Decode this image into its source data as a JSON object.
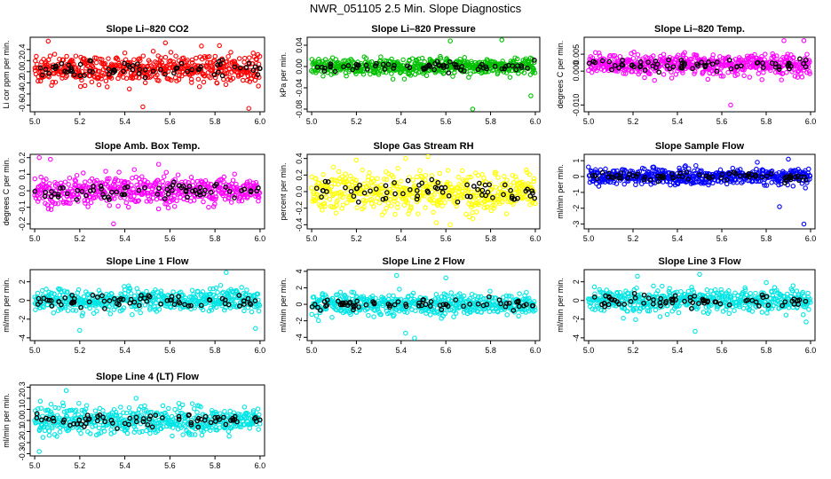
{
  "figure_title": "NWR_051105  2.5 Min. Slope Diagnostics",
  "chart_data": [
    {
      "type": "scatter",
      "title": "Slope Li–820 CO2",
      "ylabel": "Li cor ppm per min.",
      "color": "#ff0000",
      "xlim": [
        4.98,
        6.02
      ],
      "ylim": [
        -0.72,
        0.62
      ],
      "x_ticks": [
        "5.0",
        "5.2",
        "5.4",
        "5.6",
        "5.8",
        "6.0"
      ],
      "y_ticks": [
        "-0.6",
        "-0.4",
        "-0.2",
        "0.0",
        "0.2",
        "0.4"
      ],
      "y_tick_values": [
        -0.6,
        -0.4,
        -0.2,
        0.0,
        0.2,
        0.4
      ],
      "center": 0.05,
      "spread": 0.17,
      "outliers": [
        [
          5.06,
          0.55
        ],
        [
          5.48,
          -0.63
        ],
        [
          5.58,
          0.52
        ],
        [
          5.95,
          -0.66
        ],
        [
          5.82,
          0.47
        ]
      ]
    },
    {
      "type": "scatter",
      "title": "Slope Li–820 Pressure",
      "ylabel": "kPa per min.",
      "color": "#00c000",
      "xlim": [
        4.98,
        6.02
      ],
      "ylim": [
        -0.085,
        0.055
      ],
      "x_ticks": [
        "5.0",
        "5.2",
        "5.4",
        "5.6",
        "5.8",
        "6.0"
      ],
      "y_ticks": [
        "-0.08",
        "-0.04",
        "0.00",
        "0.04"
      ],
      "y_tick_values": [
        -0.08,
        -0.04,
        0.0,
        0.04
      ],
      "center": 0.0,
      "spread": 0.011,
      "outliers": [
        [
          5.72,
          -0.08
        ],
        [
          5.85,
          0.05
        ],
        [
          5.62,
          0.048
        ],
        [
          5.98,
          -0.055
        ]
      ]
    },
    {
      "type": "scatter",
      "title": "Slope Li–820 Temp.",
      "ylabel": "degrees C per min.",
      "color": "#ff00ff",
      "xlim": [
        4.98,
        6.02
      ],
      "ylim": [
        -0.012,
        0.01
      ],
      "x_ticks": [
        "5.0",
        "5.2",
        "5.4",
        "5.6",
        "5.8",
        "6.0"
      ],
      "y_ticks": [
        "-0.010",
        "0.000",
        "0.005"
      ],
      "y_tick_values": [
        -0.01,
        0.0,
        0.005
      ],
      "center": 0.002,
      "spread": 0.0022,
      "outliers": [
        [
          5.88,
          0.009
        ],
        [
          5.97,
          0.009
        ],
        [
          5.64,
          -0.01
        ]
      ]
    },
    {
      "type": "scatter",
      "title": "Slope Amb. Box Temp.",
      "ylabel": "degrees C per min.",
      "color": "#ff00ff",
      "xlim": [
        4.98,
        6.02
      ],
      "ylim": [
        -0.23,
        0.22
      ],
      "x_ticks": [
        "5.0",
        "5.2",
        "5.4",
        "5.6",
        "5.8",
        "6.0"
      ],
      "y_ticks": [
        "-0.2",
        "-0.1",
        "0.0",
        "0.1",
        "0.2"
      ],
      "y_tick_values": [
        -0.2,
        -0.1,
        0.0,
        0.1,
        0.2
      ],
      "center": 0.0,
      "spread": 0.06,
      "outliers": [
        [
          5.02,
          0.2
        ],
        [
          5.07,
          0.19
        ],
        [
          5.35,
          -0.2
        ],
        [
          5.55,
          0.16
        ]
      ]
    },
    {
      "type": "scatter",
      "title": "Slope Gas Stream RH",
      "ylabel": "percent per min.",
      "color": "#ffff00",
      "xlim": [
        4.98,
        6.02
      ],
      "ylim": [
        -0.45,
        0.45
      ],
      "x_ticks": [
        "5.0",
        "5.2",
        "5.4",
        "5.6",
        "5.8",
        "6.0"
      ],
      "y_ticks": [
        "-0.4",
        "-0.2",
        "0.0",
        "0.2",
        "0.4"
      ],
      "y_tick_values": [
        -0.4,
        -0.2,
        0.0,
        0.2,
        0.4
      ],
      "center": 0.0,
      "spread": 0.17,
      "outliers": [
        [
          5.2,
          0.38
        ],
        [
          5.42,
          0.4
        ],
        [
          5.62,
          -0.4
        ]
      ]
    },
    {
      "type": "scatter",
      "title": "Slope Sample Flow",
      "ylabel": "ml/min per min.",
      "color": "#0000ff",
      "xlim": [
        4.98,
        6.02
      ],
      "ylim": [
        -3.3,
        1.4
      ],
      "x_ticks": [
        "5.0",
        "5.2",
        "5.4",
        "5.6",
        "5.8",
        "6.0"
      ],
      "y_ticks": [
        "-3",
        "-2",
        "-1",
        "0",
        "1"
      ],
      "y_tick_values": [
        -3,
        -2,
        -1,
        0,
        1
      ],
      "center": 0.0,
      "spread": 0.35,
      "outliers": [
        [
          5.97,
          -3.0
        ],
        [
          5.86,
          -1.9
        ],
        [
          5.9,
          1.1
        ],
        [
          5.76,
          0.9
        ]
      ]
    },
    {
      "type": "scatter",
      "title": "Slope Line 1 Flow",
      "ylabel": "ml/min per min.",
      "color": "#00e5e5",
      "xlim": [
        4.98,
        6.02
      ],
      "ylim": [
        -4.3,
        3.3
      ],
      "x_ticks": [
        "5.0",
        "5.2",
        "5.4",
        "5.6",
        "5.8",
        "6.0"
      ],
      "y_ticks": [
        "-4",
        "-2",
        "0",
        "2"
      ],
      "y_tick_values": [
        -4,
        -2,
        0,
        2
      ],
      "center": 0.0,
      "spread": 0.8,
      "outliers": [
        [
          5.85,
          3.0
        ],
        [
          5.2,
          -3.2
        ],
        [
          5.98,
          -3.0
        ]
      ]
    },
    {
      "type": "scatter",
      "title": "Slope Line 2 Flow",
      "ylabel": "ml/min per min.",
      "color": "#00e5e5",
      "xlim": [
        4.98,
        6.02
      ],
      "ylim": [
        -4.4,
        4.2
      ],
      "x_ticks": [
        "5.0",
        "5.2",
        "5.4",
        "5.6",
        "5.8",
        "6.0"
      ],
      "y_ticks": [
        "-4",
        "-2",
        "0",
        "2",
        "4"
      ],
      "y_tick_values": [
        -4,
        -2,
        0,
        2,
        4
      ],
      "center": 0.0,
      "spread": 0.9,
      "outliers": [
        [
          5.46,
          -4.1
        ],
        [
          5.38,
          3.5
        ],
        [
          5.6,
          3.2
        ],
        [
          5.42,
          -3.5
        ]
      ]
    },
    {
      "type": "scatter",
      "title": "Slope Line 3 Flow",
      "ylabel": "ml/min per min.",
      "color": "#00e5e5",
      "xlim": [
        4.98,
        6.02
      ],
      "ylim": [
        -4.3,
        3.3
      ],
      "x_ticks": [
        "5.0",
        "5.2",
        "5.4",
        "5.6",
        "5.8",
        "6.0"
      ],
      "y_ticks": [
        "-4",
        "-2",
        "0",
        "2"
      ],
      "y_tick_values": [
        -4,
        -2,
        0,
        2
      ],
      "center": 0.0,
      "spread": 0.85,
      "outliers": [
        [
          5.48,
          -3.3
        ],
        [
          5.5,
          2.8
        ],
        [
          5.22,
          2.6
        ],
        [
          5.98,
          -2.3
        ]
      ]
    },
    {
      "type": "scatter",
      "title": "Slope Line 4 (LT) Flow",
      "ylabel": "ml/min per min.",
      "color": "#00e5e5",
      "xlim": [
        4.98,
        6.02
      ],
      "ylim": [
        -0.32,
        0.32
      ],
      "x_ticks": [
        "5.0",
        "5.2",
        "5.4",
        "5.6",
        "5.8",
        "6.0"
      ],
      "y_ticks": [
        "-0.3",
        "-0.2",
        "-0.1",
        "0.0",
        "0.1",
        "0.2",
        "0.3"
      ],
      "y_tick_values": [
        -0.3,
        -0.2,
        -0.1,
        0.0,
        0.1,
        0.2,
        0.3
      ],
      "center": 0.0,
      "spread": 0.085,
      "outliers": [
        [
          5.02,
          -0.28
        ],
        [
          5.14,
          0.27
        ],
        [
          5.45,
          0.2
        ]
      ]
    }
  ]
}
